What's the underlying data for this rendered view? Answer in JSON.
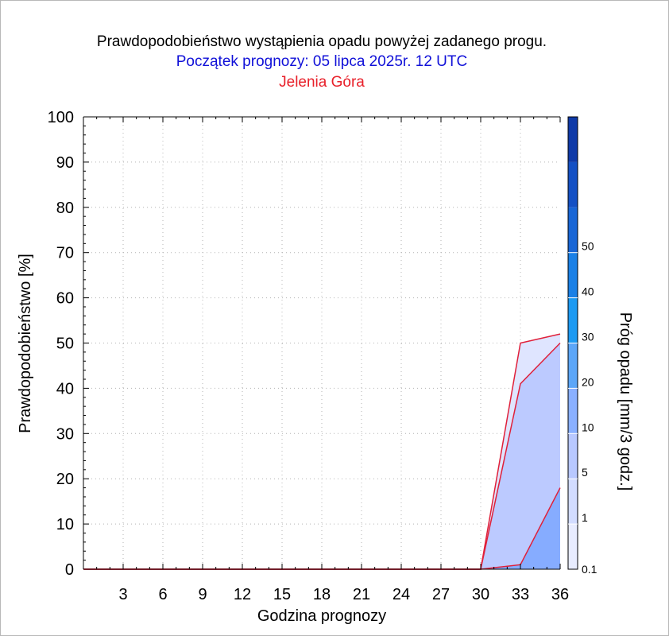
{
  "chart_data": {
    "type": "area",
    "title": "Prawdopodobieństwo wystąpienia opadu powyżej zadanego progu.",
    "subtitle": "Początek prognozy: 05 lipca 2025r. 12 UTC",
    "location": "Jelenia Góra",
    "xlabel": "Godzina prognozy",
    "ylabel": "Prawdopodobieństwo [%]",
    "xlim": [
      0,
      36
    ],
    "ylim": [
      0,
      100
    ],
    "x_ticks": [
      3,
      6,
      9,
      12,
      15,
      18,
      21,
      24,
      27,
      30,
      33,
      36
    ],
    "y_ticks": [
      0,
      10,
      20,
      30,
      40,
      50,
      60,
      70,
      80,
      90,
      100
    ],
    "grid": true,
    "x": [
      0,
      3,
      6,
      9,
      12,
      15,
      18,
      21,
      24,
      27,
      30,
      33,
      36
    ],
    "series": [
      {
        "threshold": 0.1,
        "color": "#dfe5ff",
        "values": [
          0,
          0,
          0,
          0,
          0,
          0,
          0,
          0,
          0,
          0,
          0,
          50,
          52
        ]
      },
      {
        "threshold": 1,
        "color": "#bccaff",
        "values": [
          0,
          0,
          0,
          0,
          0,
          0,
          0,
          0,
          0,
          0,
          0,
          41,
          50
        ]
      },
      {
        "threshold": 5,
        "color": "#86acff",
        "values": [
          0,
          0,
          0,
          0,
          0,
          0,
          0,
          0,
          0,
          0,
          0,
          1,
          18
        ]
      }
    ],
    "colorbar": {
      "label": "Próg opadu [mm/3 godz.]",
      "tick_labels": [
        "0.1",
        "1",
        "5",
        "10",
        "20",
        "30",
        "40",
        "50"
      ],
      "colors": [
        "#e8ecff",
        "#d2dcff",
        "#b8c8ff",
        "#8ab0ff",
        "#5ca6f8",
        "#1c9af2",
        "#1a80e6",
        "#1866d6",
        "#1450c4",
        "#0f3aa8"
      ]
    }
  }
}
